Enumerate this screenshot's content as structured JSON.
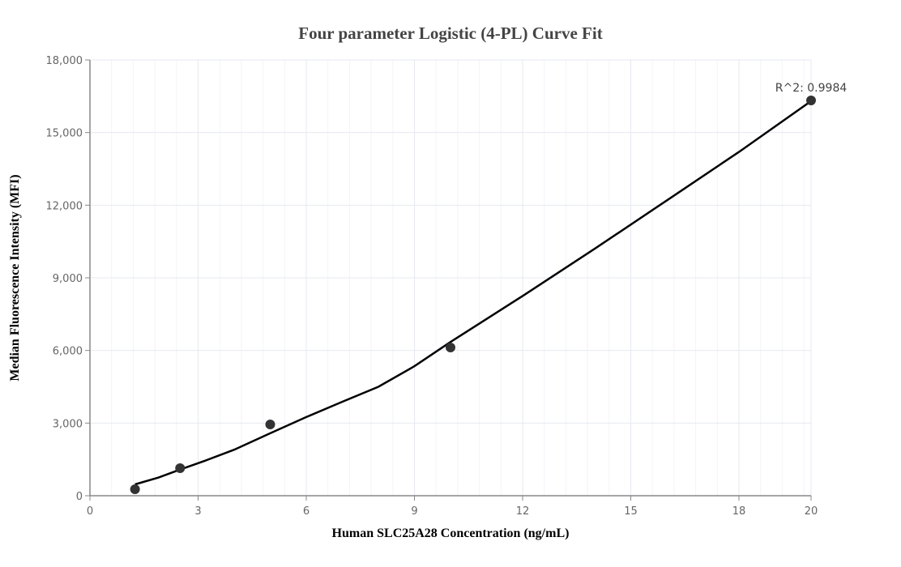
{
  "chart_data": {
    "type": "scatter",
    "title": "Four parameter Logistic (4-PL) Curve Fit",
    "xlabel": "Human SLC25A28 Concentration (ng/mL)",
    "ylabel": "Median Fluorescence Intensity (MFI)",
    "xlim": [
      0,
      20
    ],
    "ylim": [
      0,
      18000
    ],
    "xticks": [
      0,
      3,
      6,
      9,
      12,
      15,
      18,
      20
    ],
    "xtick_labels": [
      "0",
      "3",
      "6",
      "9",
      "12",
      "15",
      "18",
      "20"
    ],
    "yticks": [
      0,
      3000,
      6000,
      9000,
      12000,
      15000,
      18000
    ],
    "ytick_labels": [
      "0",
      "3,000",
      "6,000",
      "9,000",
      "12,000",
      "15,000",
      "18,000"
    ],
    "grid": true,
    "points": {
      "x": [
        1.25,
        2.5,
        5,
        10,
        20
      ],
      "y": [
        268,
        1137,
        2944,
        6122,
        16327
      ]
    },
    "fit_curve": {
      "x": [
        1.25,
        1.9,
        2.5,
        3.2,
        4,
        5,
        6,
        7,
        8,
        9,
        10,
        12,
        14,
        16,
        18,
        20
      ],
      "y": [
        470,
        750,
        1080,
        1450,
        1900,
        2580,
        3250,
        3880,
        4500,
        5350,
        6350,
        8250,
        10200,
        12200,
        14200,
        16300
      ]
    },
    "annotation": "R^2: 0.9984",
    "colors": {
      "points": "#333333",
      "curve": "#000000",
      "grid": "#e6e9f0",
      "axis": "#888888"
    }
  }
}
